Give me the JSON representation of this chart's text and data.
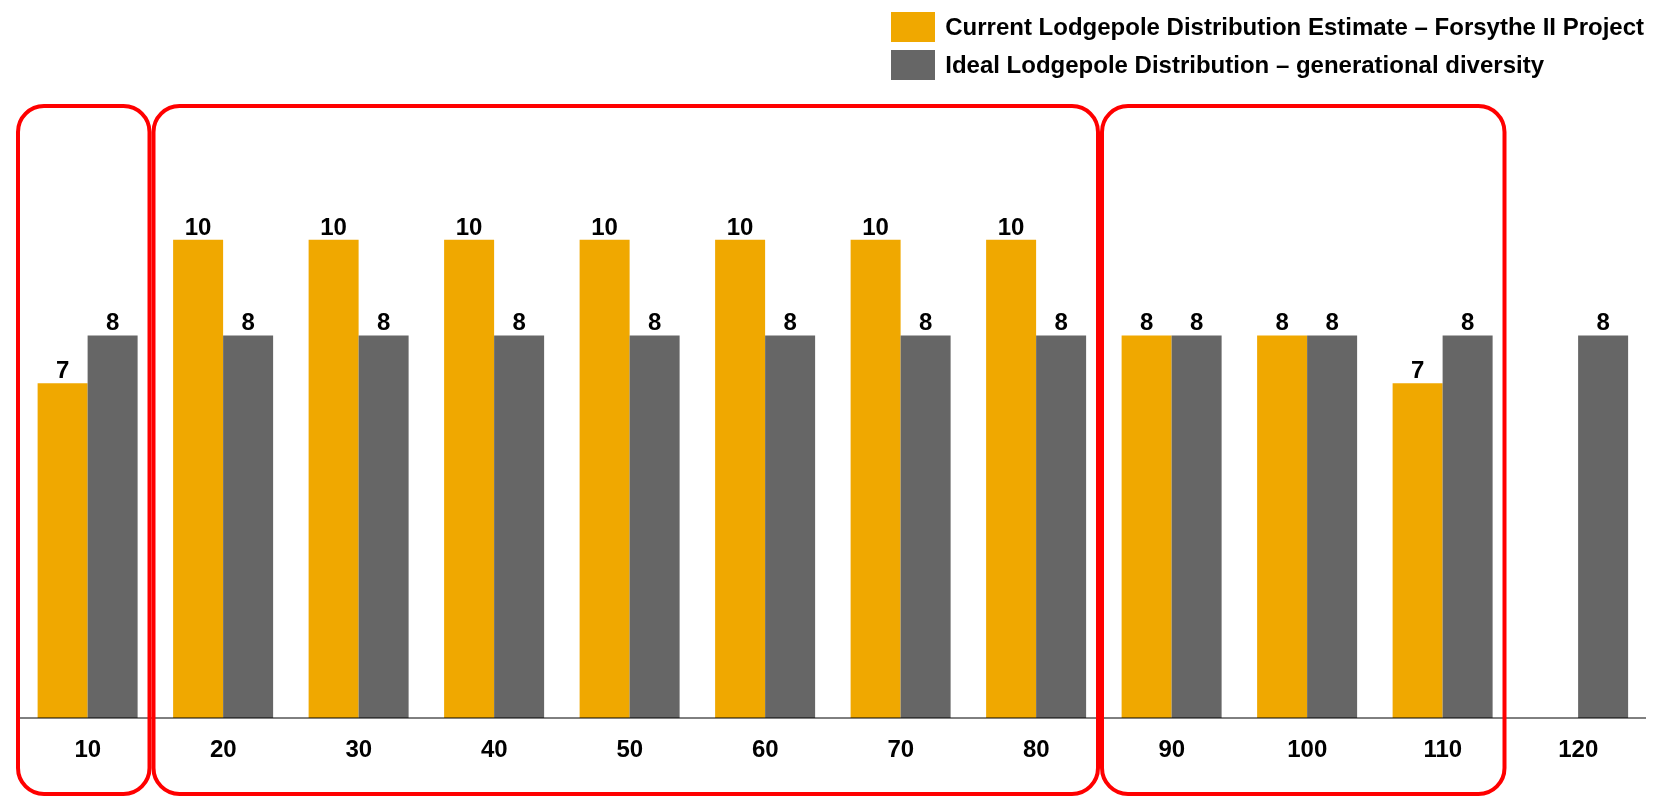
{
  "chart_data": {
    "type": "bar",
    "categories": [
      "10",
      "20",
      "30",
      "40",
      "50",
      "60",
      "70",
      "80",
      "90",
      "100",
      "110",
      "120"
    ],
    "series": [
      {
        "name": "Current Lodgepole Distribution Estimate – Forsythe II Project",
        "color": "#f0a800",
        "values": [
          7,
          10,
          10,
          10,
          10,
          10,
          10,
          10,
          8,
          8,
          7,
          null
        ]
      },
      {
        "name": "Ideal Lodgepole Distribution – generational diversity",
        "color": "#666666",
        "values": [
          8,
          8,
          8,
          8,
          8,
          8,
          8,
          8,
          8,
          8,
          8,
          8
        ]
      }
    ],
    "data_labels": true,
    "legend": "top right",
    "grid": false
  }
}
